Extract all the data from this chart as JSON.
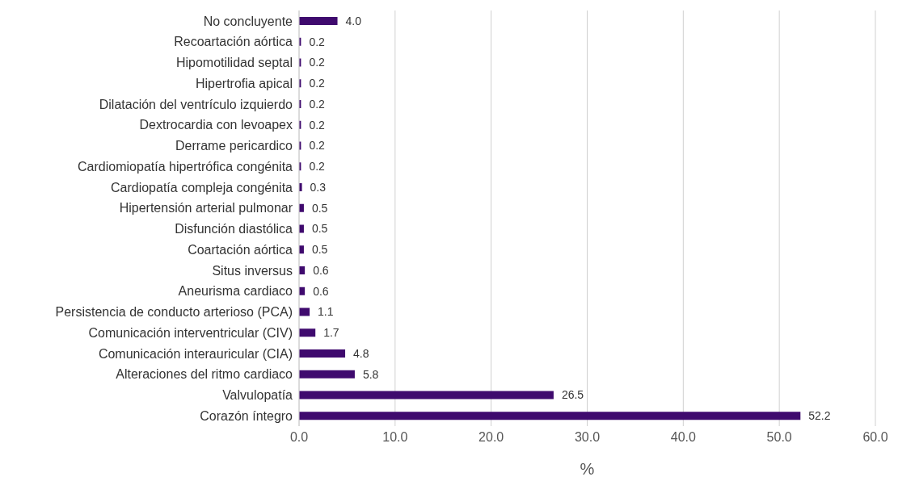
{
  "chart_data": {
    "type": "bar",
    "orientation": "horizontal",
    "xlabel": "%",
    "categories": [
      "No concluyente",
      "Recoartación aórtica",
      "Hipomotilidad septal",
      "Hipertrofia apical",
      "Dilatación del ventrículo izquierdo",
      "Dextrocardia con levoapex",
      "Derrame pericardico",
      "Cardiomiopatía hipertrófica congénita",
      "Cardiopatía compleja congénita",
      "Hipertensión arterial pulmonar",
      "Disfunción diastólica",
      "Coartación aórtica",
      "Situs inversus",
      "Aneurisma cardiaco",
      "Persistencia de conducto arterioso (PCA)",
      "Comunicación interventricular (CIV)",
      "Comunicación interauricular (CIA)",
      "Alteraciones del ritmo cardiaco",
      "Valvulopatía",
      "Corazón íntegro"
    ],
    "values": [
      4.0,
      0.2,
      0.2,
      0.2,
      0.2,
      0.2,
      0.2,
      0.2,
      0.3,
      0.5,
      0.5,
      0.5,
      0.6,
      0.6,
      1.1,
      1.7,
      4.8,
      5.8,
      26.5,
      52.2
    ],
    "value_labels": [
      "4.0",
      "0.2",
      "0.2",
      "0.2",
      "0.2",
      "0.2",
      "0.2",
      "0.2",
      "0.3",
      "0.5",
      "0.5",
      "0.5",
      "0.6",
      "0.6",
      "1.1",
      "1.7",
      "4.8",
      "5.8",
      "26.5",
      "52.2"
    ],
    "color": "#3f0a6e",
    "xlim": [
      0,
      60
    ],
    "xticks": [
      {
        "value": 0,
        "label": "0.0"
      },
      {
        "value": 10,
        "label": "10.0"
      },
      {
        "value": 20,
        "label": "20.0"
      },
      {
        "value": 30,
        "label": "30.0"
      },
      {
        "value": 40,
        "label": "40.0"
      },
      {
        "value": 50,
        "label": "50.0"
      },
      {
        "value": 60,
        "label": "60.0"
      }
    ],
    "grid": "x"
  }
}
